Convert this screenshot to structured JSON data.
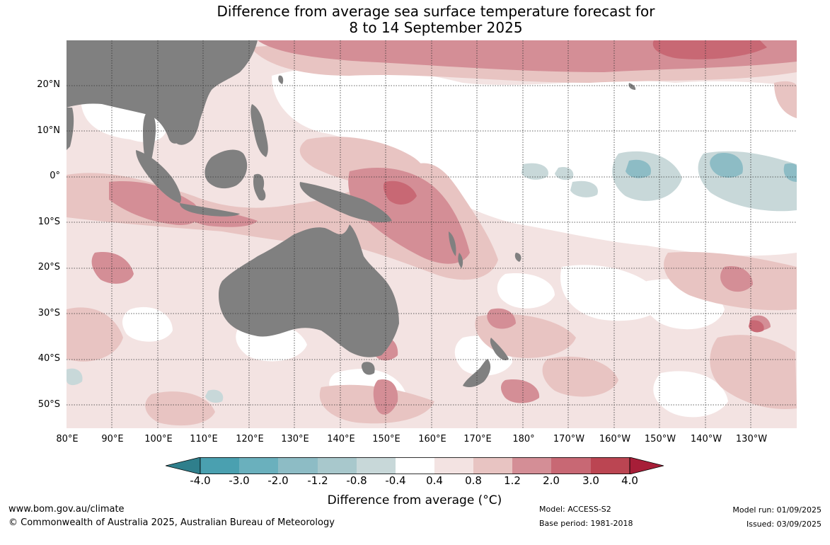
{
  "title": {
    "line1": "Difference from average sea surface temperature forecast for",
    "line2": "8 to 14 September 2025"
  },
  "map": {
    "type": "anomaly_map",
    "region": "Indo-Pacific",
    "land_color": "#808080",
    "latitude_labels": [
      "20°N",
      "10°N",
      "0°",
      "10°S",
      "20°S",
      "30°S",
      "40°S",
      "50°S"
    ],
    "longitude_labels": [
      "80°E",
      "90°E",
      "100°E",
      "110°E",
      "120°E",
      "130°E",
      "140°E",
      "150°E",
      "160°E",
      "170°E",
      "180°",
      "170°W",
      "160°W",
      "150°W",
      "140°W",
      "130°W"
    ],
    "gridlines": true
  },
  "colorbar": {
    "ticks": [
      "-4.0",
      "-3.0",
      "-2.0",
      "-1.2",
      "-0.8",
      "-0.4",
      "0.4",
      "0.8",
      "1.2",
      "2.0",
      "3.0",
      "4.0"
    ],
    "colors": [
      "#2f7f8c",
      "#4aa0b0",
      "#6ab0bd",
      "#8dbcc5",
      "#a8c8cc",
      "#c8d8d9",
      "#ffffff",
      "#f3e3e2",
      "#e8c4c2",
      "#d48e96",
      "#c86874",
      "#bb4552",
      "#a71e38"
    ],
    "label": "Difference from average (°C)"
  },
  "footer": {
    "url": "www.bom.gov.au/climate",
    "copyright": "© Commonwealth of Australia 2025, Australian Bureau of Meteorology",
    "model": "Model: ACCESS-S2",
    "base_period": "Base period: 1981-2018",
    "model_run": "Model run: 01/09/2025",
    "issued": "Issued: 03/09/2025"
  }
}
